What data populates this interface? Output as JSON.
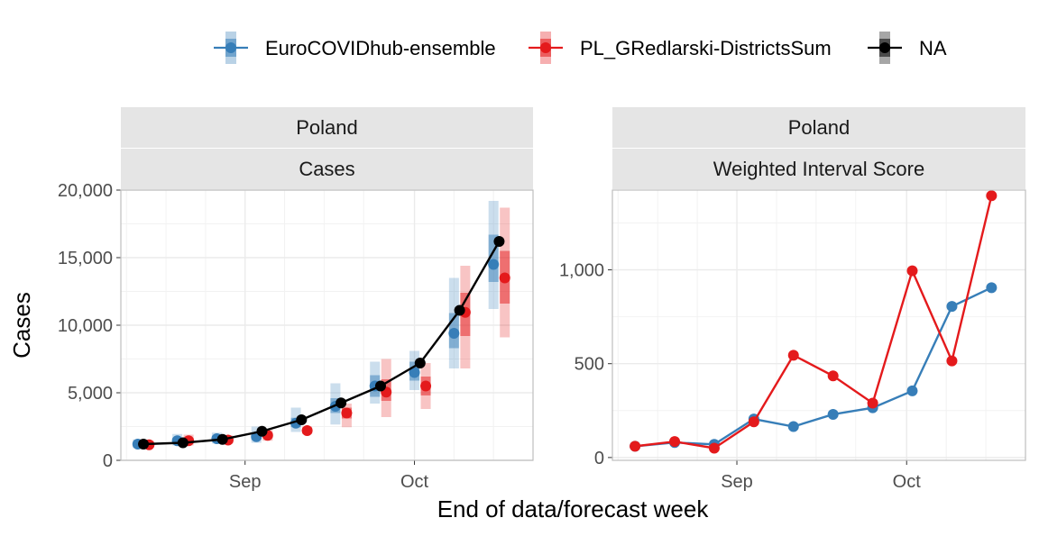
{
  "colors": {
    "ensemble": "#377EB8",
    "gredlarski": "#E41A1C",
    "observed": "#000000",
    "strip_bg": "#E5E5E5",
    "grid": "#EBEBEB",
    "panel_border": "#BDBDBD"
  },
  "legend": {
    "items": [
      {
        "label": "EuroCOVIDhub-ensemble",
        "color": "#377EB8"
      },
      {
        "label": "PL_GRedlarski-DistrictsSum",
        "color": "#E41A1C"
      },
      {
        "label": "NA",
        "color": "#000000"
      }
    ]
  },
  "axis_title_x": "End of data/forecast week",
  "chart_data": [
    {
      "type": "line",
      "strip_top": "Poland",
      "strip_bottom": "Cases",
      "ylabel": "Cases",
      "ylim": [
        0,
        20000
      ],
      "yticks": [
        0,
        5000,
        10000,
        15000,
        20000
      ],
      "ytick_labels": [
        "0",
        "5,000",
        "10,000",
        "15,000",
        "20,000"
      ],
      "xlim": [
        "2021-08-10",
        "2021-10-22"
      ],
      "xticks": [
        "2021-09-01",
        "2021-10-01"
      ],
      "xtick_labels": [
        "Sep",
        "Oct"
      ],
      "observed": {
        "x": [
          "2021-08-14",
          "2021-08-21",
          "2021-08-28",
          "2021-09-04",
          "2021-09-11",
          "2021-09-18",
          "2021-09-25",
          "2021-10-02",
          "2021-10-09",
          "2021-10-16"
        ],
        "y": [
          1200,
          1300,
          1550,
          2150,
          3000,
          4250,
          5500,
          7200,
          11100,
          16200
        ]
      },
      "series": [
        {
          "name": "EuroCOVIDhub-ensemble",
          "x": [
            "2021-08-13",
            "2021-08-20",
            "2021-08-27",
            "2021-09-03",
            "2021-09-10",
            "2021-09-17",
            "2021-09-24",
            "2021-10-01",
            "2021-10-08",
            "2021-10-15"
          ],
          "median": [
            1200,
            1450,
            1600,
            1750,
            2750,
            4000,
            5500,
            6500,
            9400,
            14500
          ],
          "q50": [
            [
              1050,
              1350
            ],
            [
              1300,
              1650
            ],
            [
              1450,
              1800
            ],
            [
              1500,
              2050
            ],
            [
              2450,
              3150
            ],
            [
              3500,
              4600
            ],
            [
              4700,
              6300
            ],
            [
              5900,
              7300
            ],
            [
              8300,
              10900
            ],
            [
              13200,
              16700
            ]
          ],
          "q90": [
            [
              900,
              1550
            ],
            [
              1100,
              1950
            ],
            [
              1250,
              2050
            ],
            [
              1300,
              2500
            ],
            [
              2100,
              3900
            ],
            [
              2650,
              5700
            ],
            [
              4200,
              7300
            ],
            [
              5200,
              8100
            ],
            [
              6800,
              13500
            ],
            [
              11200,
              19200
            ]
          ]
        },
        {
          "name": "PL_GRedlarski-DistrictsSum",
          "x": [
            "2021-08-15",
            "2021-08-22",
            "2021-08-29",
            "2021-09-05",
            "2021-09-12",
            "2021-09-19",
            "2021-09-26",
            "2021-10-03",
            "2021-10-10",
            "2021-10-17"
          ],
          "median": [
            1150,
            1450,
            1500,
            1850,
            2200,
            3500,
            5050,
            5500,
            10950,
            13500
          ],
          "q50": [
            [
              1050,
              1300
            ],
            [
              1250,
              1650
            ],
            [
              1350,
              1700
            ],
            [
              1650,
              2050
            ],
            [
              2050,
              2400
            ],
            [
              3100,
              3900
            ],
            [
              4400,
              6000
            ],
            [
              4800,
              6200
            ],
            [
              9200,
              12400
            ],
            [
              11600,
              15500
            ]
          ],
          "q90": [
            [
              950,
              1450
            ],
            [
              1100,
              1900
            ],
            [
              1250,
              1850
            ],
            [
              1450,
              2250
            ],
            [
              1950,
              2500
            ],
            [
              2450,
              4200
            ],
            [
              3200,
              7500
            ],
            [
              3800,
              7200
            ],
            [
              6800,
              14400
            ],
            [
              9100,
              18700
            ]
          ]
        }
      ]
    },
    {
      "type": "line",
      "strip_top": "Poland",
      "strip_bottom": "Weighted Interval Score",
      "ylabel": "",
      "ylim": [
        -15,
        1425
      ],
      "yticks": [
        0,
        500,
        1000
      ],
      "ytick_labels": [
        "0",
        "500",
        "1,000"
      ],
      "xlim": [
        "2021-08-10",
        "2021-10-22"
      ],
      "xticks": [
        "2021-09-01",
        "2021-10-01"
      ],
      "xtick_labels": [
        "Sep",
        "Oct"
      ],
      "series": [
        {
          "name": "EuroCOVIDhub-ensemble",
          "x": [
            "2021-08-14",
            "2021-08-21",
            "2021-08-28",
            "2021-09-04",
            "2021-09-11",
            "2021-09-18",
            "2021-09-25",
            "2021-10-02",
            "2021-10-09",
            "2021-10-16"
          ],
          "y": [
            60,
            80,
            70,
            205,
            165,
            230,
            265,
            355,
            805,
            905
          ]
        },
        {
          "name": "PL_GRedlarski-DistrictsSum",
          "x": [
            "2021-08-14",
            "2021-08-21",
            "2021-08-28",
            "2021-09-04",
            "2021-09-11",
            "2021-09-18",
            "2021-09-25",
            "2021-10-02",
            "2021-10-09",
            "2021-10-16"
          ],
          "y": [
            60,
            85,
            50,
            190,
            545,
            435,
            290,
            995,
            515,
            1395
          ]
        }
      ]
    }
  ]
}
